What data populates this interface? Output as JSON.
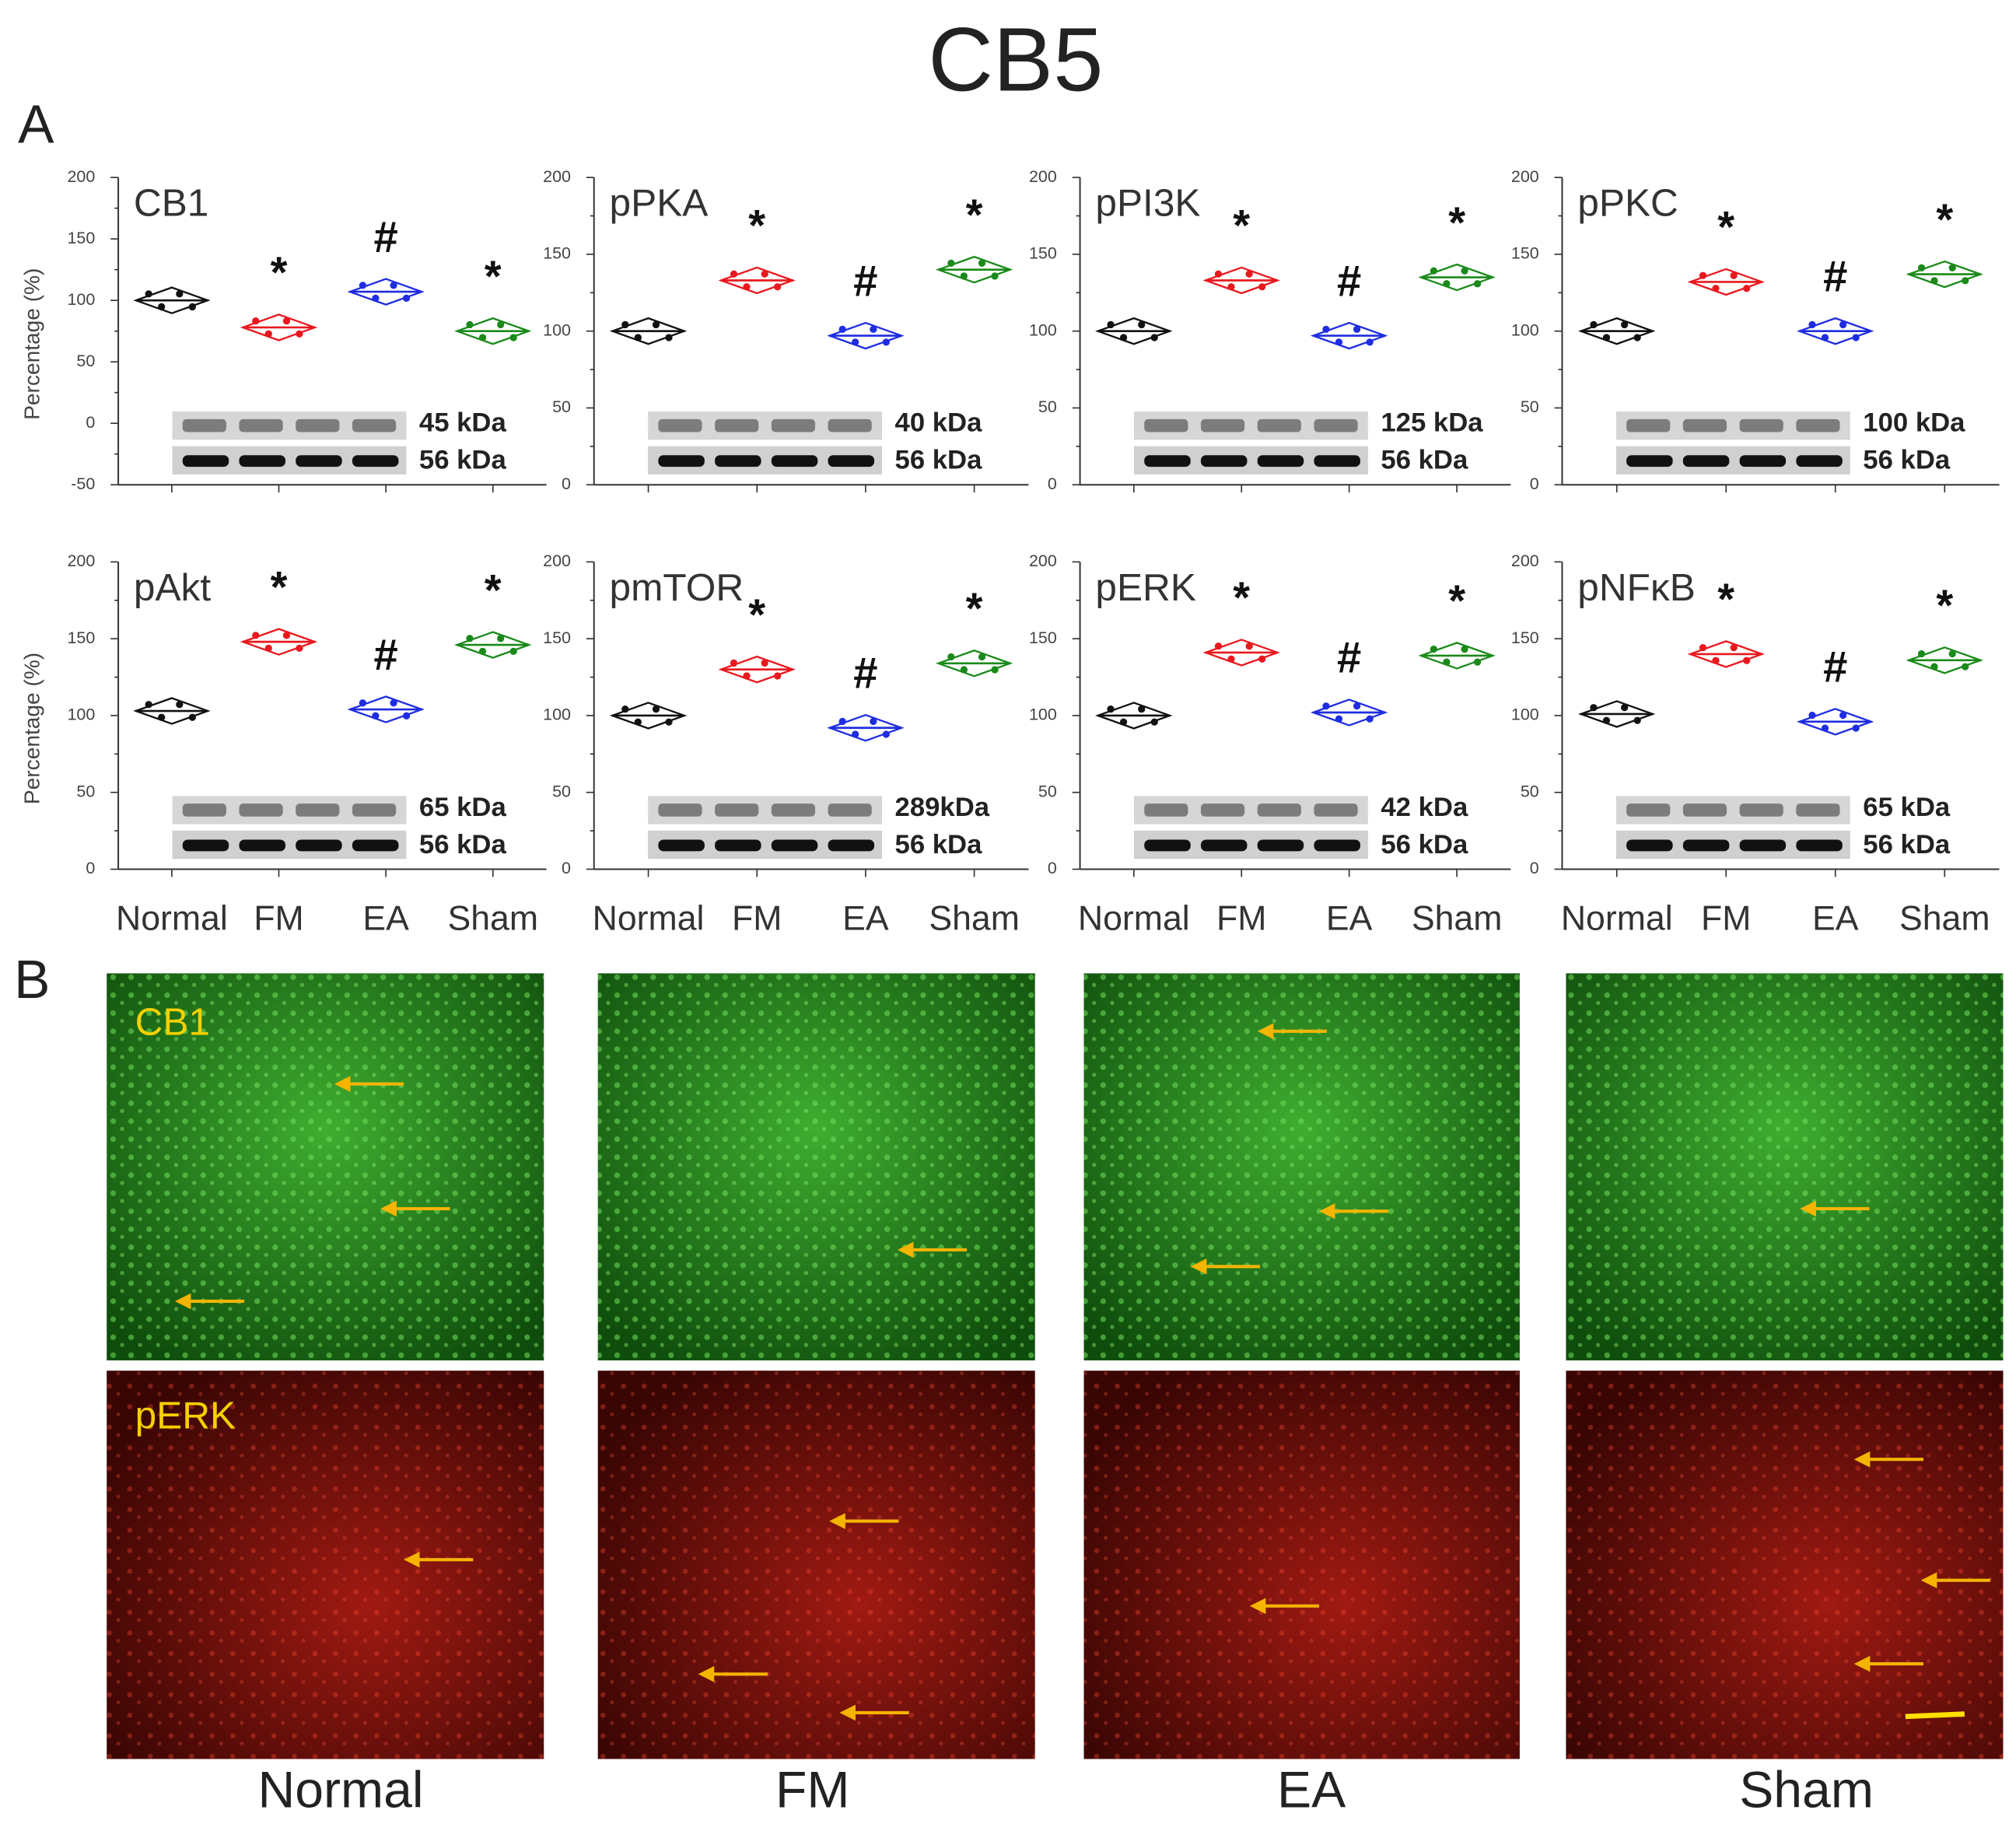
{
  "title": "CB5",
  "panel_a_label": "A",
  "panel_b_label": "B",
  "chart_data": [
    {
      "type": "dot",
      "title": "CB1",
      "y_label": "Percentage (%)",
      "values": [
        100,
        78,
        107,
        75
      ],
      "colors": [
        "#111111",
        "#e8191e",
        "#1f2de0",
        "#1a8a1a"
      ],
      "annotations": [
        null,
        "*",
        "#",
        "*"
      ],
      "blot_labels": [
        "45 kDa",
        "56 kDa"
      ],
      "ylim": [
        -50,
        200
      ],
      "yticks": [
        -50,
        0,
        50,
        100,
        150,
        200
      ]
    },
    {
      "type": "dot",
      "title": "pPKA",
      "values": [
        100,
        133,
        97,
        140
      ],
      "colors": [
        "#111111",
        "#e8191e",
        "#1f2de0",
        "#1a8a1a"
      ],
      "annotations": [
        null,
        "*",
        "#",
        "*"
      ],
      "blot_labels": [
        "40 kDa",
        "56 kDa"
      ],
      "ylim": [
        0,
        200
      ],
      "yticks": [
        0,
        50,
        100,
        150,
        200
      ]
    },
    {
      "type": "dot",
      "title": "pPI3K",
      "values": [
        100,
        133,
        97,
        135
      ],
      "colors": [
        "#111111",
        "#e8191e",
        "#1f2de0",
        "#1a8a1a"
      ],
      "annotations": [
        null,
        "*",
        "#",
        "*"
      ],
      "blot_labels": [
        "125 kDa",
        "56 kDa"
      ],
      "ylim": [
        0,
        200
      ],
      "yticks": [
        0,
        50,
        100,
        150,
        200
      ]
    },
    {
      "type": "dot",
      "title": "pPKC",
      "values": [
        100,
        132,
        100,
        137
      ],
      "colors": [
        "#111111",
        "#e8191e",
        "#1f2de0",
        "#1a8a1a"
      ],
      "annotations": [
        null,
        "*",
        "#",
        "*"
      ],
      "blot_labels": [
        "100 kDa",
        "56 kDa"
      ],
      "ylim": [
        0,
        200
      ],
      "yticks": [
        0,
        50,
        100,
        150,
        200
      ]
    },
    {
      "type": "dot",
      "title": "pAkt",
      "y_label": "Percentage (%)",
      "categories": [
        "Normal",
        "FM",
        "EA",
        "Sham"
      ],
      "values": [
        103,
        148,
        104,
        146
      ],
      "colors": [
        "#111111",
        "#e8191e",
        "#1f2de0",
        "#1a8a1a"
      ],
      "annotations": [
        null,
        "*",
        "#",
        "*"
      ],
      "blot_labels": [
        "65 kDa",
        "56 kDa"
      ],
      "ylim": [
        0,
        200
      ],
      "yticks": [
        0,
        50,
        100,
        150,
        200
      ]
    },
    {
      "type": "dot",
      "title": "pmTOR",
      "categories": [
        "Normal",
        "FM",
        "EA",
        "Sham"
      ],
      "values": [
        100,
        130,
        92,
        134
      ],
      "colors": [
        "#111111",
        "#e8191e",
        "#1f2de0",
        "#1a8a1a"
      ],
      "annotations": [
        null,
        "*",
        "#",
        "*"
      ],
      "blot_labels": [
        "289kDa",
        "56 kDa"
      ],
      "ylim": [
        0,
        200
      ],
      "yticks": [
        0,
        50,
        100,
        150,
        200
      ]
    },
    {
      "type": "dot",
      "title": "pERK",
      "categories": [
        "Normal",
        "FM",
        "EA",
        "Sham"
      ],
      "values": [
        100,
        141,
        102,
        139
      ],
      "colors": [
        "#111111",
        "#e8191e",
        "#1f2de0",
        "#1a8a1a"
      ],
      "annotations": [
        null,
        "*",
        "#",
        "*"
      ],
      "blot_labels": [
        "42 kDa",
        "56 kDa"
      ],
      "ylim": [
        0,
        200
      ],
      "yticks": [
        0,
        50,
        100,
        150,
        200
      ]
    },
    {
      "type": "dot",
      "title": "pNFκB",
      "categories": [
        "Normal",
        "FM",
        "EA",
        "Sham"
      ],
      "values": [
        101,
        140,
        96,
        136
      ],
      "colors": [
        "#111111",
        "#e8191e",
        "#1f2de0",
        "#1a8a1a"
      ],
      "annotations": [
        null,
        "*",
        "#",
        "*"
      ],
      "blot_labels": [
        "65 kDa",
        "56 kDa"
      ],
      "ylim": [
        0,
        200
      ],
      "yticks": [
        0,
        50,
        100,
        150,
        200
      ]
    }
  ],
  "micrographs": {
    "row_labels": [
      "CB1",
      "pERK"
    ],
    "column_labels": [
      "Normal",
      "FM",
      "EA",
      "Sham"
    ]
  }
}
